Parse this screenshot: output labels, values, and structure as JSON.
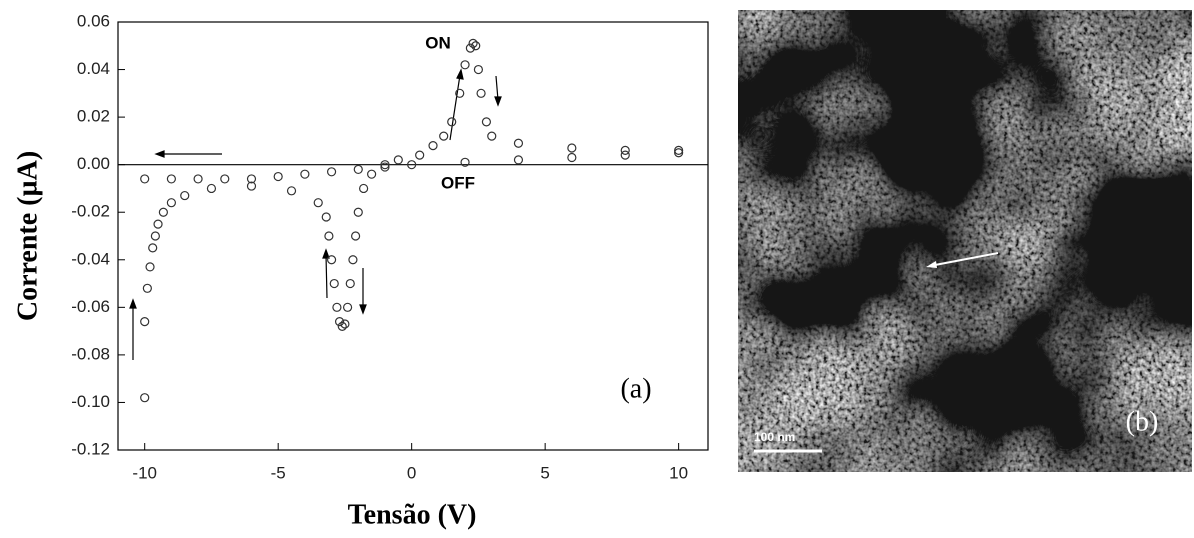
{
  "chart_data": {
    "type": "scatter",
    "x_label": "Tensão (V)",
    "y_label": "Corrente (µA)",
    "xlim": [
      -11,
      11.1
    ],
    "ylim": [
      -0.12,
      0.06
    ],
    "xticks": [
      -10,
      -5,
      0,
      5,
      10
    ],
    "yticks": [
      0.06,
      0.04,
      0.02,
      {
        "value": 0,
        "label": "0.00"
      },
      -0.02,
      -0.04,
      -0.06,
      -0.08,
      {
        "value": -0.1,
        "label": "-0.10"
      },
      -0.12
    ],
    "series": [
      {
        "color": "#333333",
        "x": [
          -10,
          -9,
          -8,
          -7,
          -6,
          -5,
          -4,
          -3,
          -2,
          -1,
          0,
          2,
          4,
          6,
          8,
          10,
          10,
          8,
          6,
          4,
          3,
          2.8,
          2.6,
          2.5,
          2.4,
          2.3,
          2.2,
          2.0,
          1.8,
          1.5,
          1.2,
          0.8,
          0.3,
          -0.5,
          -1,
          -1.5,
          -1.8,
          -2,
          -2.1,
          -2.2,
          -2.3,
          -2.4,
          -2.5,
          -2.6,
          -2.7,
          -2.8,
          -2.9,
          -3.0,
          -3.1,
          -3.2,
          -3.5,
          -4.5,
          -6,
          -7.5,
          -8.5,
          -9,
          -9.3,
          -9.5,
          -9.6,
          -9.7,
          -9.8,
          -9.9,
          -10,
          -10
        ],
        "y": [
          -0.006,
          -0.006,
          -0.006,
          -0.006,
          -0.006,
          -0.005,
          -0.004,
          -0.003,
          -0.002,
          -0.001,
          0,
          0.001,
          0.002,
          0.003,
          0.004,
          0.005,
          0.006,
          0.006,
          0.007,
          0.009,
          0.012,
          0.018,
          0.03,
          0.04,
          0.05,
          0.051,
          0.049,
          0.042,
          0.03,
          0.018,
          0.012,
          0.008,
          0.004,
          0.002,
          0,
          -0.004,
          -0.01,
          -0.02,
          -0.03,
          -0.04,
          -0.05,
          -0.06,
          -0.067,
          -0.068,
          -0.066,
          -0.06,
          -0.05,
          -0.04,
          -0.03,
          -0.022,
          -0.016,
          -0.011,
          -0.009,
          -0.01,
          -0.013,
          -0.016,
          -0.02,
          -0.025,
          -0.03,
          -0.035,
          -0.043,
          -0.052,
          -0.066,
          -0.098
        ]
      }
    ],
    "annotations": [
      "ON",
      "OFF",
      "(a)"
    ]
  },
  "image": {
    "scale_bar": "100 nm",
    "panel_label": "(b)"
  }
}
